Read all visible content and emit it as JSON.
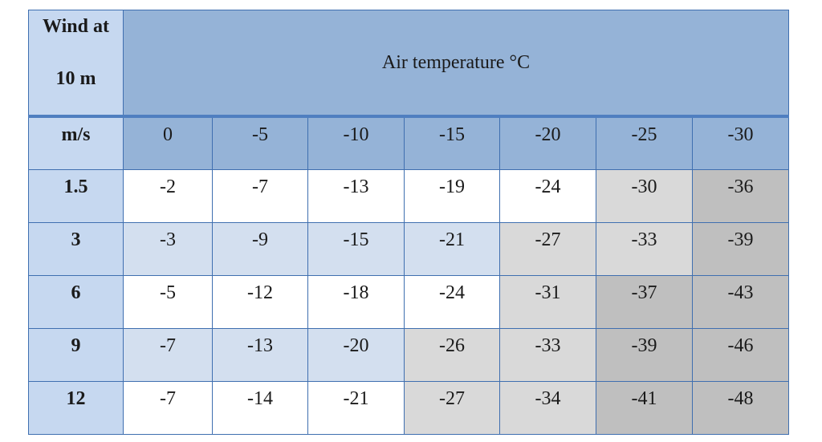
{
  "table": {
    "corner_line1": "Wind at",
    "corner_line2": "10 m",
    "title": "Air temperature °C",
    "unit": "m/s",
    "temperatures": [
      "0",
      "-5",
      "-10",
      "-15",
      "-20",
      "-25",
      "-30"
    ],
    "rows": [
      {
        "wind": "1.5",
        "values": [
          "-2",
          "-7",
          "-13",
          "-19",
          "-24",
          "-30",
          "-36"
        ]
      },
      {
        "wind": "3",
        "values": [
          "-3",
          "-9",
          "-15",
          "-21",
          "-27",
          "-33",
          "-39"
        ]
      },
      {
        "wind": "6",
        "values": [
          "-5",
          "-12",
          "-18",
          "-24",
          "-31",
          "-37",
          "-43"
        ]
      },
      {
        "wind": "9",
        "values": [
          "-7",
          "-13",
          "-20",
          "-26",
          "-33",
          "-39",
          "-46"
        ]
      },
      {
        "wind": "12",
        "values": [
          "-7",
          "-14",
          "-21",
          "-27",
          "-34",
          "-41",
          "-48"
        ]
      }
    ],
    "cell_shading": [
      [
        "white",
        "white",
        "white",
        "white",
        "white",
        "lgray",
        "dgray"
      ],
      [
        "blue",
        "blue",
        "blue",
        "blue",
        "lgray",
        "lgray",
        "dgray"
      ],
      [
        "white",
        "white",
        "white",
        "white",
        "lgray",
        "dgray",
        "dgray"
      ],
      [
        "blue",
        "blue",
        "blue",
        "lgray",
        "lgray",
        "dgray",
        "dgray"
      ],
      [
        "white",
        "white",
        "white",
        "lgray",
        "lgray",
        "dgray",
        "dgray"
      ]
    ],
    "colors": {
      "header_blue": "#95b3d7",
      "side_blue": "#c6d8f0",
      "pale_blue": "#d3dfef",
      "light_gray": "#d9d9d9",
      "dark_gray": "#bfbfbf",
      "border": "#3f6fb0"
    }
  }
}
